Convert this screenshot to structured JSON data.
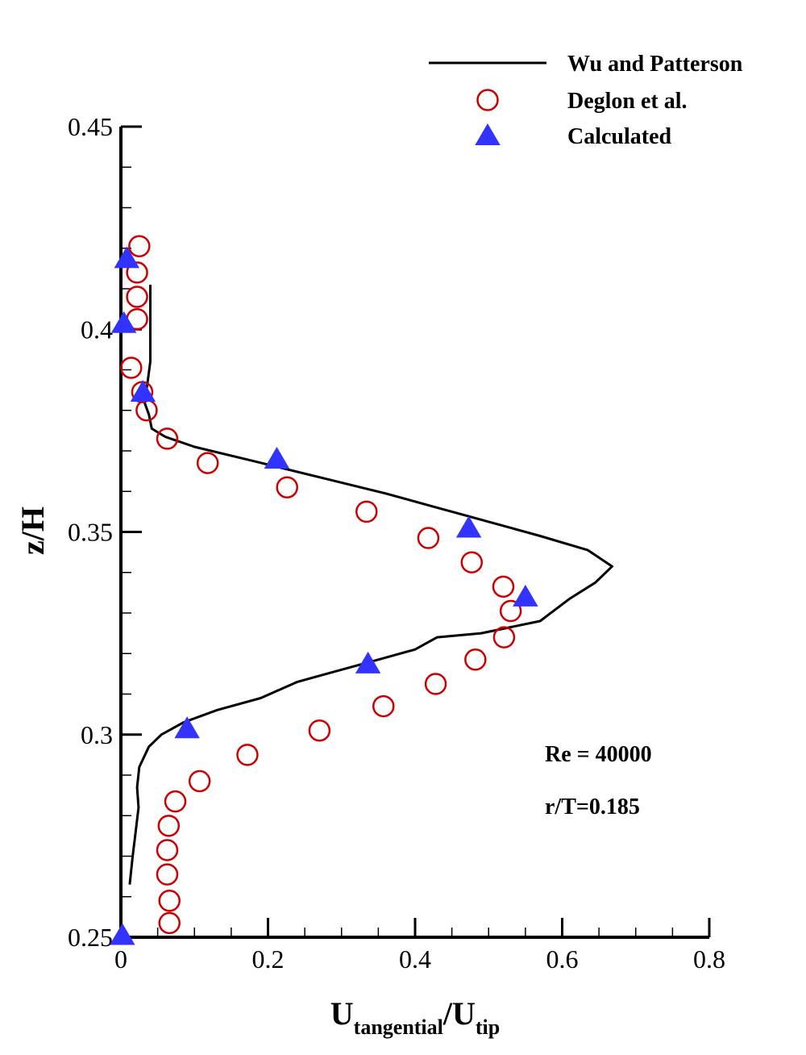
{
  "chart_data": {
    "type": "scatter",
    "xlabel": {
      "main": "U",
      "sub1": "tangential",
      "sep": "/U",
      "sub2": "tip"
    },
    "ylabel": "z/H",
    "xlim": [
      0,
      0.8
    ],
    "ylim": [
      0.25,
      0.45
    ],
    "x_ticks": [
      0,
      0.2,
      0.4,
      0.6,
      0.8
    ],
    "x_tick_labels": [
      "0",
      "0.2",
      "0.4",
      "0.6",
      "0.8"
    ],
    "y_ticks": [
      0.25,
      0.3,
      0.35,
      0.4,
      0.45
    ],
    "y_tick_labels": [
      "0.25",
      "0.3",
      "0.35",
      "0.4",
      "0.45"
    ],
    "grid": false,
    "legend_position": "top-right",
    "annotations": [
      "Re = 40000",
      "r/T=0.185"
    ],
    "series": [
      {
        "name": "Wu and Patterson",
        "style": "line",
        "color": "#000000",
        "points": [
          [
            0.012,
            0.263
          ],
          [
            0.016,
            0.27
          ],
          [
            0.02,
            0.276
          ],
          [
            0.024,
            0.282
          ],
          [
            0.022,
            0.287
          ],
          [
            0.025,
            0.292
          ],
          [
            0.038,
            0.297
          ],
          [
            0.055,
            0.3
          ],
          [
            0.085,
            0.303
          ],
          [
            0.13,
            0.306
          ],
          [
            0.19,
            0.309
          ],
          [
            0.24,
            0.313
          ],
          [
            0.3,
            0.316
          ],
          [
            0.36,
            0.319
          ],
          [
            0.4,
            0.321
          ],
          [
            0.43,
            0.324
          ],
          [
            0.49,
            0.325
          ],
          [
            0.57,
            0.328
          ],
          [
            0.61,
            0.3335
          ],
          [
            0.645,
            0.3375
          ],
          [
            0.668,
            0.3415
          ],
          [
            0.635,
            0.3455
          ],
          [
            0.57,
            0.349
          ],
          [
            0.5,
            0.3525
          ],
          [
            0.43,
            0.356
          ],
          [
            0.36,
            0.3595
          ],
          [
            0.27,
            0.3635
          ],
          [
            0.18,
            0.3675
          ],
          [
            0.1,
            0.371
          ],
          [
            0.06,
            0.3735
          ],
          [
            0.042,
            0.3755
          ],
          [
            0.038,
            0.379
          ],
          [
            0.032,
            0.382
          ],
          [
            0.036,
            0.3865
          ],
          [
            0.04,
            0.392
          ],
          [
            0.04,
            0.398
          ],
          [
            0.04,
            0.404
          ],
          [
            0.04,
            0.411
          ]
        ]
      },
      {
        "name": "Deglon et al.",
        "style": "open-circle",
        "color": "#cc0000",
        "points": [
          [
            0.066,
            0.2535
          ],
          [
            0.066,
            0.259
          ],
          [
            0.063,
            0.2655
          ],
          [
            0.063,
            0.2715
          ],
          [
            0.065,
            0.2775
          ],
          [
            0.074,
            0.2835
          ],
          [
            0.107,
            0.2885
          ],
          [
            0.172,
            0.295
          ],
          [
            0.27,
            0.301
          ],
          [
            0.357,
            0.307
          ],
          [
            0.428,
            0.3125
          ],
          [
            0.482,
            0.3185
          ],
          [
            0.521,
            0.324
          ],
          [
            0.53,
            0.3305
          ],
          [
            0.52,
            0.3365
          ],
          [
            0.477,
            0.3425
          ],
          [
            0.418,
            0.3485
          ],
          [
            0.334,
            0.355
          ],
          [
            0.226,
            0.361
          ],
          [
            0.118,
            0.367
          ],
          [
            0.063,
            0.373
          ],
          [
            0.035,
            0.38
          ],
          [
            0.029,
            0.3845
          ],
          [
            0.014,
            0.3905
          ],
          [
            0.022,
            0.4025
          ],
          [
            0.022,
            0.408
          ],
          [
            0.022,
            0.414
          ],
          [
            0.025,
            0.4205
          ]
        ]
      },
      {
        "name": "Calculated",
        "style": "filled-triangle",
        "color": "#3333ff",
        "points": [
          [
            0.002,
            0.2505
          ],
          [
            0.09,
            0.3015
          ],
          [
            0.336,
            0.3175
          ],
          [
            0.55,
            0.334
          ],
          [
            0.473,
            0.351
          ],
          [
            0.212,
            0.368
          ],
          [
            0.03,
            0.3845
          ],
          [
            0.004,
            0.4015
          ],
          [
            0.008,
            0.4175
          ]
        ]
      }
    ]
  }
}
